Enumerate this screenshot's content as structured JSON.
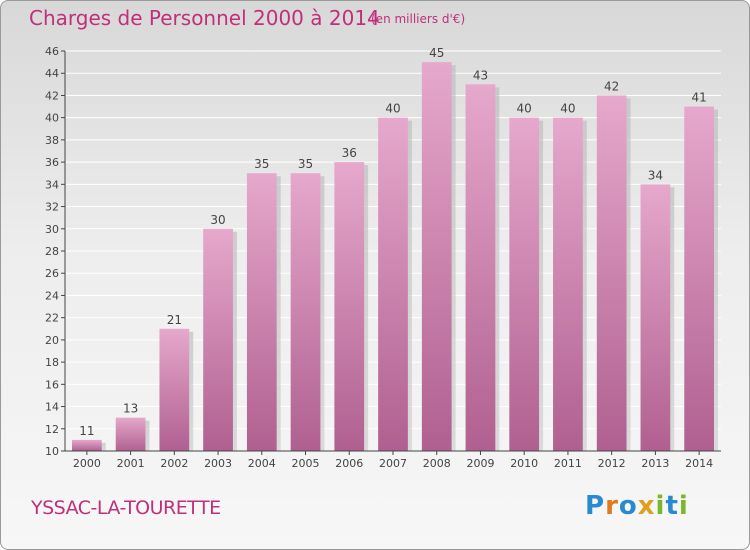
{
  "header": {
    "title": "Charges de Personnel 2000 à 2014",
    "subtitle": "(en milliers d'€)"
  },
  "footer": {
    "commune": "YSSAC-LA-TOURETTE",
    "logo": [
      "P",
      "r",
      "o",
      "x",
      "i",
      "t",
      "i"
    ]
  },
  "colors": {
    "title": "#c0307a",
    "bar_top": "#e6a8cc",
    "bar_bottom": "#b06090",
    "axis": "#444444"
  },
  "chart_data": {
    "type": "bar",
    "title": "Charges de Personnel 2000 à 2014",
    "subtitle": "(en milliers d'€)",
    "categories": [
      "2000",
      "2001",
      "2002",
      "2003",
      "2004",
      "2005",
      "2006",
      "2007",
      "2008",
      "2009",
      "2010",
      "2011",
      "2012",
      "2013",
      "2014"
    ],
    "values": [
      11,
      13,
      21,
      30,
      35,
      35,
      36,
      40,
      45,
      43,
      40,
      40,
      42,
      34,
      41
    ],
    "ylim": [
      10,
      46
    ],
    "yticks": [
      10,
      12,
      14,
      16,
      18,
      20,
      22,
      24,
      26,
      28,
      30,
      32,
      34,
      36,
      38,
      40,
      42,
      44,
      46
    ],
    "grid": true,
    "legend": "none",
    "data_labels": true
  }
}
